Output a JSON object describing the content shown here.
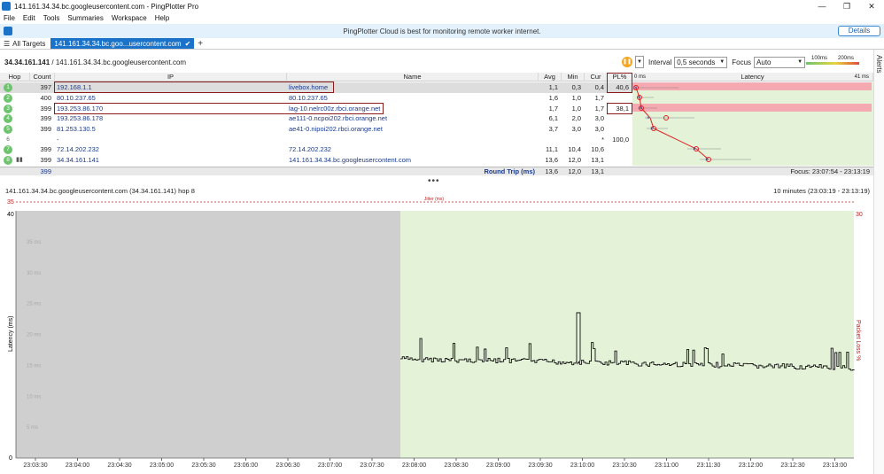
{
  "window": {
    "title": "141.161.34.34.bc.googleusercontent.com - PingPlotter Pro",
    "min": "—",
    "max": "❐",
    "close": "✕"
  },
  "menu": [
    "File",
    "Edit",
    "Tools",
    "Summaries",
    "Workspace",
    "Help"
  ],
  "banner": {
    "message": "PingPlotter Cloud is best for monitoring remote worker internet.",
    "details": "Details"
  },
  "tabs": {
    "all_targets": "All Targets",
    "active": "141.161.34.34.bc.goo...usercontent.com",
    "add": "+"
  },
  "alerts": "Alerts",
  "breadcrumb": {
    "source": "34.34.161.141",
    "sep": " / ",
    "target": "141.161.34.34.bc.googleusercontent.com"
  },
  "controls": {
    "interval_label": "Interval",
    "interval_value": "0,5 seconds",
    "focus_label": "Focus",
    "focus_value": "Auto"
  },
  "legend": {
    "a": "100ms",
    "b": "200ms"
  },
  "columns": {
    "hop": "Hop",
    "count": "Count",
    "ip": "IP",
    "name": "Name",
    "avg": "Avg",
    "min": "Min",
    "cur": "Cur",
    "pl": "PL%",
    "latency": "Latency",
    "lat_left": "0 ms",
    "lat_right": "41 ms"
  },
  "hops": [
    {
      "hop": "1",
      "count": "397",
      "ip": "192.168.1.1",
      "name": "livebox.home",
      "avg": "1,1",
      "min": "0,3",
      "cur": "0,4",
      "pl": "40,6"
    },
    {
      "hop": "2",
      "count": "400",
      "ip": "80.10.237.65",
      "name": "80.10.237.65",
      "avg": "1,6",
      "min": "1,0",
      "cur": "1,7",
      "pl": ""
    },
    {
      "hop": "3",
      "count": "399",
      "ip": "193.253.86.170",
      "name": "lag-10.nelrc00z.rbci.orange.net",
      "avg": "1,7",
      "min": "1,0",
      "cur": "1,7",
      "pl": "38,1"
    },
    {
      "hop": "4",
      "count": "399",
      "ip": "193.253.86.178",
      "name": "ae111-0.ncpoi202.rbci.orange.net",
      "avg": "6,1",
      "min": "2,0",
      "cur": "3,0",
      "pl": ""
    },
    {
      "hop": "5",
      "count": "399",
      "ip": "81.253.130.5",
      "name": "ae41-0.nipoi202.rbci.orange.net",
      "avg": "3,7",
      "min": "3,0",
      "cur": "3,0",
      "pl": ""
    },
    {
      "hop": "6",
      "count": "",
      "ip": "-",
      "name": "",
      "avg": "",
      "min": "",
      "cur": "*",
      "pl": "100,0"
    },
    {
      "hop": "7",
      "count": "399",
      "ip": "72.14.202.232",
      "name": "72.14.202.232",
      "avg": "11,1",
      "min": "10,4",
      "cur": "10,6",
      "pl": ""
    },
    {
      "hop": "8",
      "count": "399",
      "ip": "34.34.161.141",
      "name": "141.161.34.34.bc.googleusercontent.com",
      "avg": "13,6",
      "min": "12,0",
      "cur": "13,1",
      "pl": ""
    }
  ],
  "round_trip": {
    "count": "399",
    "label": "Round Trip (ms)",
    "avg": "13,6",
    "min": "12,0",
    "cur": "13,1",
    "focus": "Focus: 23:07:54 - 23:13:19"
  },
  "timeline": {
    "title": "141.161.34.34.bc.googleusercontent.com (34.34.161.141) hop 8",
    "range": "10 minutes (23:03:19 - 23:13:19)",
    "jitter_label": "Jitter (ms)",
    "jitter_y": "35",
    "y_left_top": "40",
    "y_left_bottom": "0",
    "y_right_top": "30",
    "y_left_label": "Latency (ms)",
    "y_right_label": "Packet Loss %",
    "x_ticks": [
      "23:03:30",
      "23:04:00",
      "23:04:30",
      "23:05:00",
      "23:05:30",
      "23:06:00",
      "23:06:30",
      "23:07:00",
      "23:07:30",
      "23:08:00",
      "23:08:30",
      "23:09:00",
      "23:09:30",
      "23:10:00",
      "23:10:30",
      "23:11:00",
      "23:11:30",
      "23:12:00",
      "23:12:30",
      "23:13:00"
    ],
    "y_ticks": [
      "35 ms",
      "30 ms",
      "25 ms",
      "20 ms",
      "15 ms",
      "10 ms",
      "5 ms"
    ]
  }
}
